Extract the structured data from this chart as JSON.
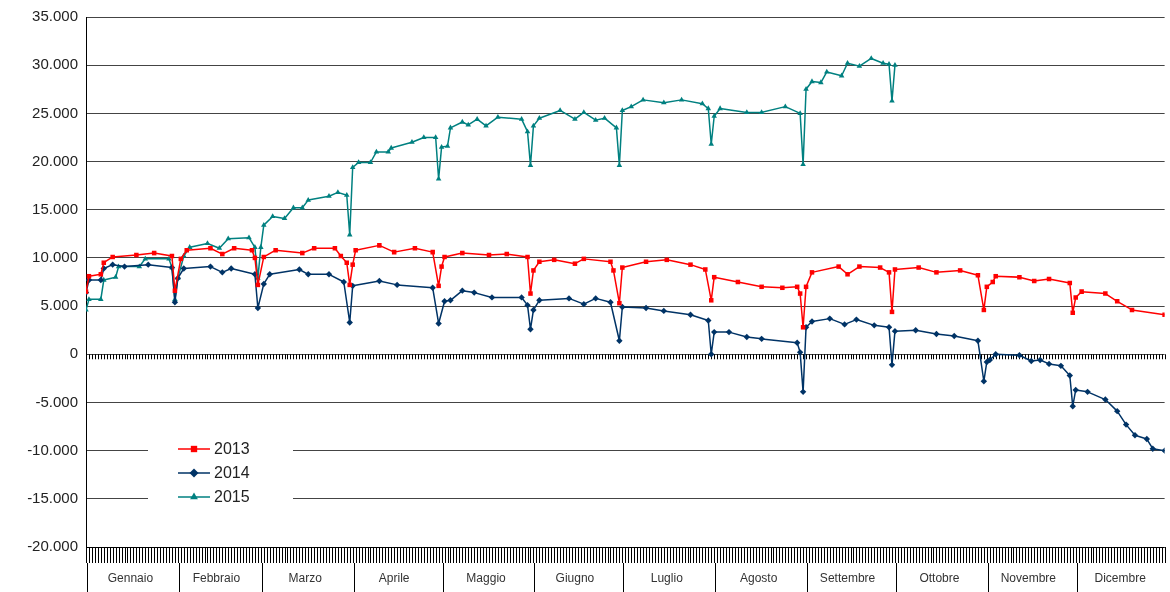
{
  "chart_data": {
    "type": "line",
    "xlim": [
      "--01-01",
      "--12-31"
    ],
    "xticks": [
      {
        "value": "--01-16",
        "label": "Gennaio"
      },
      {
        "value": "--02-14",
        "label": "Febbraio"
      },
      {
        "value": "--03-16",
        "label": "Marzo"
      },
      {
        "value": "--04-15",
        "label": "Aprile"
      },
      {
        "value": "--05-16",
        "label": "Maggio"
      },
      {
        "value": "--06-15",
        "label": "Giugno"
      },
      {
        "value": "--07-16",
        "label": "Luglio"
      },
      {
        "value": "--08-16",
        "label": "Agosto"
      },
      {
        "value": "--09-15",
        "label": "Settembre"
      },
      {
        "value": "--10-16",
        "label": "Ottobre"
      },
      {
        "value": "--11-15",
        "label": "Novembre"
      },
      {
        "value": "--12-16",
        "label": "Dicembre"
      }
    ],
    "ylim": [
      -20000,
      35000
    ],
    "yticks": [
      {
        "value": -20000,
        "label": "-20.000"
      },
      {
        "value": -15000,
        "label": "-15.000"
      },
      {
        "value": -10000,
        "label": "-10.000"
      },
      {
        "value": -5000,
        "label": "-5.000"
      },
      0,
      {
        "value": 5000,
        "label": "5.000"
      },
      {
        "value": 10000,
        "label": "10.000"
      },
      {
        "value": 15000,
        "label": "15.000"
      },
      {
        "value": 20000,
        "label": "20.000"
      },
      {
        "value": 25000,
        "label": "25.000"
      },
      {
        "value": 30000,
        "label": "30.000"
      },
      {
        "value": 35000,
        "label": "35.000"
      }
    ],
    "grid": "y",
    "legend": "bottom left",
    "line_style": "solid",
    "series": [
      {
        "name": "2013",
        "color": "#ff0000",
        "marker": "square",
        "x": [
          "--01-01",
          "--01-02",
          "--01-06",
          "--01-07",
          "--01-10",
          "--01-18",
          "--01-24",
          "--01-30",
          "--01-31",
          "--02-02",
          "--02-04",
          "--02-12",
          "--02-16",
          "--02-20",
          "--02-26",
          "--02-27",
          "--02-28",
          "--03-02",
          "--03-06",
          "--03-15",
          "--03-19",
          "--03-26",
          "--03-28",
          "--03-30",
          "--03-31",
          "--04-01",
          "--04-02",
          "--04-10",
          "--04-15",
          "--04-22",
          "--04-28",
          "--04-30",
          "--05-01",
          "--05-02",
          "--05-08",
          "--05-17",
          "--05-23",
          "--05-30",
          "--05-31",
          "--06-01",
          "--06-03",
          "--06-08",
          "--06-15",
          "--06-18",
          "--06-27",
          "--06-28",
          "--06-30",
          "--07-01",
          "--07-09",
          "--07-16",
          "--07-24",
          "--07-29",
          "--07-31",
          "--08-01",
          "--08-09",
          "--08-17",
          "--08-24",
          "--08-29",
          "--08-30",
          "--08-31",
          "--09-01",
          "--09-03",
          "--09-12",
          "--09-15",
          "--09-19",
          "--09-26",
          "--09-29",
          "--09-30",
          "--10-01",
          "--10-09",
          "--10-15",
          "--10-23",
          "--10-29",
          "--10-31",
          "--11-01",
          "--11-03",
          "--11-04",
          "--11-12",
          "--11-17",
          "--11-22",
          "--11-29",
          "--11-30",
          "--12-01",
          "--12-03",
          "--12-11",
          "--12-15",
          "--12-20",
          "--12-31"
        ],
        "values": [
          6500,
          8100,
          8300,
          9500,
          10100,
          10300,
          10500,
          10200,
          6600,
          9900,
          10800,
          11000,
          10400,
          11000,
          10800,
          10000,
          7200,
          10100,
          10800,
          10500,
          11000,
          11000,
          10200,
          9500,
          7200,
          9300,
          10800,
          11300,
          10600,
          11000,
          10600,
          7100,
          9100,
          10100,
          10500,
          10300,
          10400,
          10100,
          6300,
          8700,
          9600,
          9800,
          9400,
          9900,
          9600,
          8700,
          5300,
          9000,
          9600,
          9800,
          9300,
          8800,
          5600,
          8000,
          7500,
          7000,
          6900,
          7000,
          6300,
          2800,
          7000,
          8500,
          9100,
          8300,
          9100,
          9000,
          8500,
          4400,
          8800,
          9000,
          8500,
          8700,
          8200,
          4600,
          7000,
          7500,
          8100,
          8000,
          7600,
          7800,
          7400,
          4300,
          5900,
          6500,
          6300,
          5500,
          4600,
          4100
        ]
      },
      {
        "name": "2014",
        "color": "#003366",
        "marker": "diamond",
        "x": [
          "--01-01",
          "--01-02",
          "--01-06",
          "--01-07",
          "--01-10",
          "--01-14",
          "--01-22",
          "--01-30",
          "--01-31",
          "--02-01",
          "--02-03",
          "--02-12",
          "--02-16",
          "--02-19",
          "--02-27",
          "--02-28",
          "--03-02",
          "--03-04",
          "--03-14",
          "--03-17",
          "--03-24",
          "--03-29",
          "--03-31",
          "--04-01",
          "--04-10",
          "--04-16",
          "--04-28",
          "--04-30",
          "--05-02",
          "--05-04",
          "--05-08",
          "--05-12",
          "--05-18",
          "--05-28",
          "--05-30",
          "--05-31",
          "--06-01",
          "--06-03",
          "--06-13",
          "--06-18",
          "--06-22",
          "--06-27",
          "--06-30",
          "--07-01",
          "--07-09",
          "--07-15",
          "--07-24",
          "--07-30",
          "--07-31",
          "--08-01",
          "--08-06",
          "--08-12",
          "--08-17",
          "--08-29",
          "--08-30",
          "--08-31",
          "--09-01",
          "--09-03",
          "--09-09",
          "--09-14",
          "--09-18",
          "--09-24",
          "--09-29",
          "--09-30",
          "--10-01",
          "--10-08",
          "--10-15",
          "--10-21",
          "--10-29",
          "--10-31",
          "--11-01",
          "--11-02",
          "--11-04",
          "--11-12",
          "--11-16",
          "--11-19",
          "--11-22",
          "--11-26",
          "--11-29",
          "--11-30",
          "--12-01",
          "--12-05",
          "--12-11",
          "--12-15",
          "--12-18",
          "--12-21",
          "--12-25",
          "--12-27",
          "--12-31"
        ],
        "values": [
          6400,
          7700,
          7700,
          8900,
          9300,
          9100,
          9300,
          9000,
          5400,
          7900,
          8900,
          9100,
          8500,
          8900,
          8300,
          4800,
          7300,
          8300,
          8800,
          8300,
          8300,
          7500,
          3300,
          7100,
          7600,
          7200,
          6900,
          3200,
          5500,
          5600,
          6600,
          6400,
          5900,
          5900,
          5100,
          2600,
          4600,
          5600,
          5800,
          5200,
          5800,
          5400,
          1400,
          4900,
          4800,
          4500,
          4100,
          3500,
          0,
          2300,
          2300,
          1800,
          1600,
          1200,
          200,
          -3900,
          2800,
          3400,
          3700,
          3100,
          3600,
          3000,
          2800,
          -1100,
          2400,
          2500,
          2100,
          1900,
          1400,
          -2800,
          -800,
          -600,
          0,
          -100,
          -700,
          -600,
          -1000,
          -1200,
          -2200,
          -5400,
          -3700,
          -3900,
          -4700,
          -5900,
          -7300,
          -8400,
          -8800,
          -9800,
          -10000
        ]
      },
      {
        "name": "2015",
        "color": "#008080",
        "marker": "triangle",
        "x": [
          "--01-01",
          "--01-02",
          "--01-06",
          "--01-07",
          "--01-11",
          "--01-12",
          "--01-19",
          "--01-21",
          "--01-29",
          "--01-30",
          "--01-31",
          "--02-01",
          "--02-03",
          "--02-05",
          "--02-11",
          "--02-15",
          "--02-18",
          "--02-25",
          "--02-27",
          "--02-28",
          "--03-01",
          "--03-02",
          "--03-05",
          "--03-09",
          "--03-12",
          "--03-15",
          "--03-17",
          "--03-24",
          "--03-27",
          "--03-30",
          "--03-31",
          "--04-01",
          "--04-03",
          "--04-07",
          "--04-09",
          "--04-13",
          "--04-14",
          "--04-21",
          "--04-25",
          "--04-29",
          "--04-30",
          "--05-01",
          "--05-03",
          "--05-04",
          "--05-08",
          "--05-10",
          "--05-13",
          "--05-16",
          "--05-20",
          "--05-28",
          "--05-30",
          "--05-31",
          "--06-01",
          "--06-03",
          "--06-10",
          "--06-15",
          "--06-18",
          "--06-22",
          "--06-25",
          "--06-29",
          "--06-30",
          "--07-01",
          "--07-04",
          "--07-08",
          "--07-15",
          "--07-21",
          "--07-28",
          "--07-30",
          "--07-31",
          "--08-01",
          "--08-03",
          "--08-12",
          "--08-17",
          "--08-25",
          "--08-30",
          "--08-31",
          "--09-01",
          "--09-03",
          "--09-06",
          "--09-08",
          "--09-13",
          "--09-15",
          "--09-19",
          "--09-23",
          "--09-27",
          "--09-29",
          "--09-30",
          "--10-01"
        ],
        "values": [
          4600,
          5700,
          5700,
          7700,
          8000,
          9100,
          9100,
          9900,
          9900,
          9000,
          5700,
          7900,
          10200,
          11100,
          11500,
          11000,
          12000,
          12100,
          11100,
          7900,
          11100,
          13400,
          14300,
          14100,
          15200,
          15200,
          16000,
          16400,
          16800,
          16500,
          12400,
          19400,
          19900,
          19900,
          21000,
          21000,
          21400,
          22000,
          22500,
          22500,
          18200,
          21500,
          21600,
          23500,
          24100,
          23800,
          24400,
          23700,
          24600,
          24400,
          23100,
          19600,
          23700,
          24500,
          25300,
          24400,
          25100,
          24300,
          24500,
          23500,
          19600,
          25300,
          25700,
          26400,
          26100,
          26400,
          26000,
          25500,
          21800,
          24700,
          25500,
          25100,
          25100,
          25700,
          25000,
          19700,
          27500,
          28300,
          28200,
          29300,
          28900,
          30200,
          29900,
          30700,
          30200,
          30100,
          26300,
          30000
        ]
      }
    ]
  }
}
